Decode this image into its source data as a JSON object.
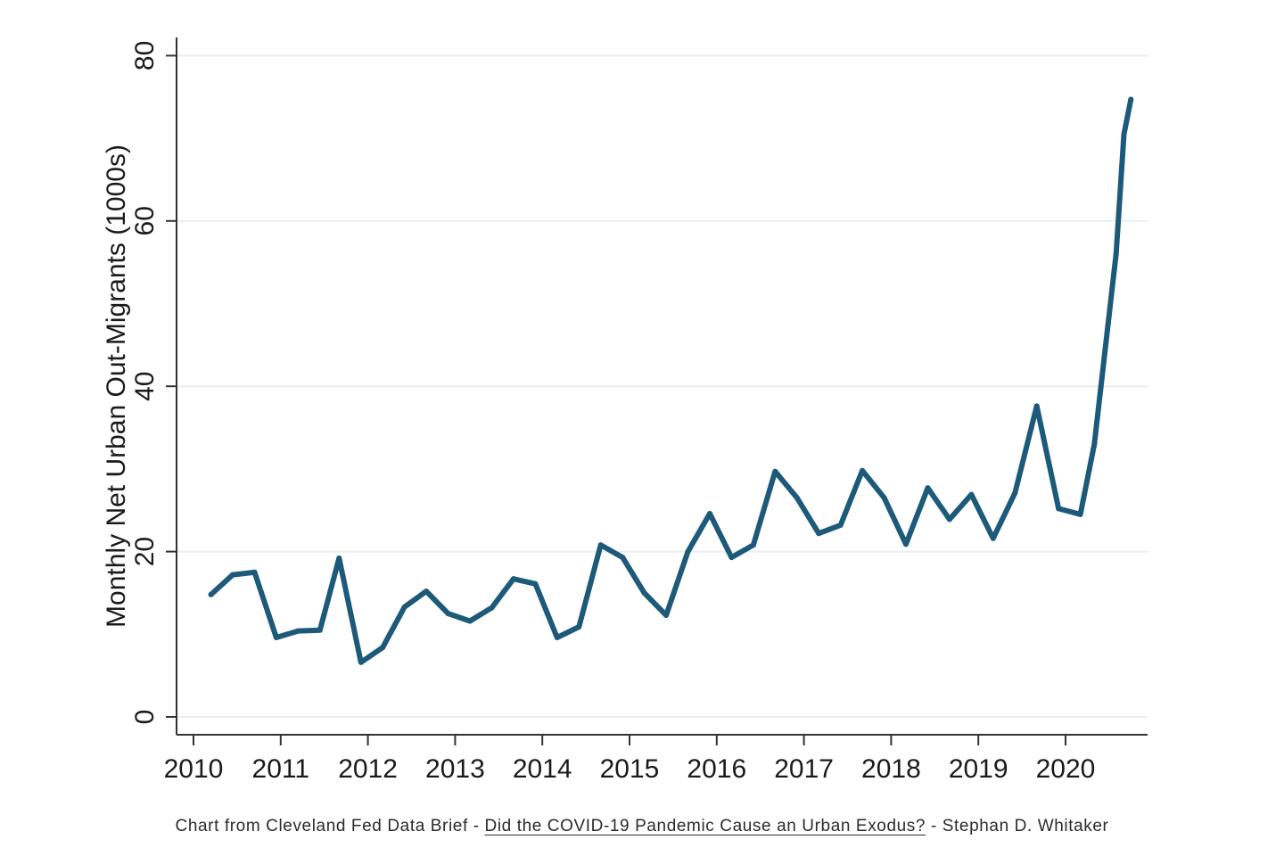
{
  "chart_data": {
    "type": "line",
    "title": "",
    "xlabel": "",
    "ylabel": "Monthly Net Urban Out-Migrants (1000s)",
    "xlim": [
      2009.8,
      2021.0
    ],
    "ylim": [
      -2,
      82
    ],
    "x_ticks": [
      "2010",
      "2011",
      "2012",
      "2013",
      "2014",
      "2015",
      "2016",
      "2017",
      "2018",
      "2019",
      "2020"
    ],
    "x_tick_values": [
      2010,
      2011,
      2012,
      2013,
      2014,
      2015,
      2016,
      2017,
      2018,
      2019,
      2020
    ],
    "y_ticks": [
      "0",
      "20",
      "40",
      "60",
      "80"
    ],
    "y_tick_values": [
      0,
      20,
      40,
      60,
      80
    ],
    "grid": true,
    "line_color": "#1d5a7a",
    "series": [
      {
        "x": [
          2010.2,
          2010.45,
          2010.7,
          2010.95,
          2011.2,
          2011.45,
          2011.67,
          2011.92,
          2012.17,
          2012.42,
          2012.67,
          2012.92,
          2013.17,
          2013.42,
          2013.67,
          2013.92,
          2014.17,
          2014.42,
          2014.67,
          2014.92,
          2015.17,
          2015.42,
          2015.67,
          2015.92,
          2016.17,
          2016.42,
          2016.67,
          2016.92,
          2017.17,
          2017.42,
          2017.67,
          2017.92,
          2018.17,
          2018.42,
          2018.67,
          2018.92,
          2019.17,
          2019.42,
          2019.67,
          2019.92,
          2020.17,
          2020.33,
          2020.58,
          2020.67,
          2020.75
        ],
        "values": [
          14.8,
          17.2,
          17.5,
          9.6,
          10.4,
          10.5,
          19.2,
          6.6,
          8.4,
          13.3,
          15.2,
          12.5,
          11.6,
          13.2,
          16.7,
          16.1,
          9.6,
          10.9,
          20.8,
          19.3,
          15.0,
          12.3,
          20.0,
          24.6,
          19.3,
          20.8,
          29.7,
          26.5,
          22.2,
          23.2,
          29.8,
          26.5,
          20.9,
          27.7,
          23.9,
          26.9,
          21.6,
          27.1,
          37.6,
          25.2,
          24.5,
          33.0,
          56.0,
          70.5,
          74.7
        ]
      }
    ]
  },
  "caption": {
    "prefix": "Chart from Cleveland Fed Data Brief - ",
    "link_text": "Did the COVID-19 Pandemic Cause an Urban Exodus?",
    "suffix": " - Stephan D. Whitaker"
  }
}
